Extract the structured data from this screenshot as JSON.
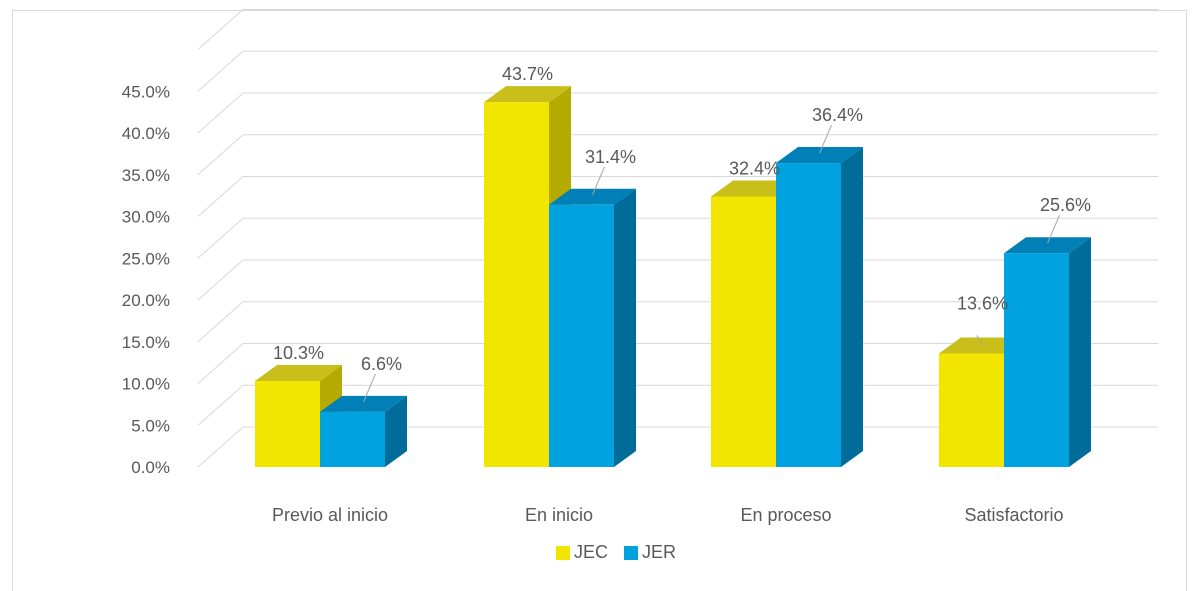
{
  "chart_data": {
    "type": "bar",
    "title": "",
    "xlabel": "",
    "ylabel": "",
    "categories": [
      "Previo al inicio",
      "En inicio",
      "En proceso",
      "Satisfactorio"
    ],
    "series": [
      {
        "name": "JEC",
        "values": [
          10.3,
          43.7,
          32.4,
          13.6
        ],
        "color": "#f2e600",
        "shade": "#b5ab00",
        "top": "#c9bf1a"
      },
      {
        "name": "JER",
        "values": [
          6.6,
          31.4,
          36.4,
          25.6
        ],
        "color": "#00a2e0",
        "shade": "#006c99",
        "top": "#0080b6"
      }
    ],
    "data_labels": [
      [
        "10.3%",
        "43.7%",
        "32.4%",
        "13.6%"
      ],
      [
        "6.6%",
        "31.4%",
        "36.4%",
        "25.6%"
      ]
    ],
    "y_ticks": [
      "0.0%",
      "5.0%",
      "10.0%",
      "15.0%",
      "20.0%",
      "25.0%",
      "30.0%",
      "35.0%",
      "40.0%",
      "45.0%"
    ],
    "ylim": [
      0,
      45
    ],
    "grid": true,
    "style": "3d-column",
    "legend_position": "bottom",
    "colors": {
      "grid": "#d9d9d9",
      "text": "#595959"
    }
  }
}
